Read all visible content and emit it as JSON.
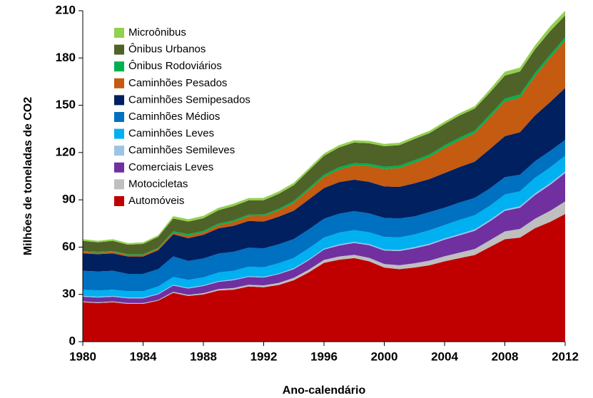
{
  "chart_data": {
    "type": "stacked_area",
    "xlabel": "Ano-calendário",
    "ylabel": "Milhões de toneladas de CO2",
    "x": [
      1980,
      1981,
      1982,
      1983,
      1984,
      1985,
      1986,
      1987,
      1988,
      1989,
      1990,
      1991,
      1992,
      1993,
      1994,
      1995,
      1996,
      1997,
      1998,
      1999,
      2000,
      2001,
      2002,
      2003,
      2004,
      2005,
      2006,
      2007,
      2008,
      2009,
      2010,
      2011,
      2012
    ],
    "xlim": [
      1980,
      2012
    ],
    "xticks": [
      1980,
      1984,
      1988,
      1992,
      1996,
      2000,
      2004,
      2008,
      2012
    ],
    "ylim": [
      0,
      210
    ],
    "yticks": [
      0,
      30,
      60,
      90,
      120,
      150,
      180,
      210
    ],
    "legend": "upper left",
    "series": [
      {
        "name": "Automóveis",
        "color": "#c00000",
        "values": [
          25,
          24.5,
          25,
          24,
          24,
          26,
          31,
          29,
          30,
          32.5,
          33,
          35,
          34.5,
          36,
          39,
          44,
          50,
          52,
          53,
          51,
          47,
          46,
          47,
          48.5,
          51,
          53,
          55,
          60,
          65,
          66,
          72,
          76,
          81
        ]
      },
      {
        "name": "Motocicletas",
        "color": "#bfbfbf",
        "values": [
          0.5,
          0.5,
          0.5,
          0.5,
          0.5,
          0.5,
          0.6,
          0.7,
          0.8,
          0.9,
          1,
          1.1,
          1.2,
          1.3,
          1.5,
          1.7,
          1.9,
          2,
          2.1,
          2.2,
          2.3,
          2.5,
          2.7,
          2.9,
          3.2,
          3.5,
          3.8,
          4.3,
          5,
          5.5,
          6,
          7,
          8
        ]
      },
      {
        "name": "Comerciais Leves",
        "color": "#7030a0",
        "values": [
          3,
          3,
          3,
          3,
          3,
          3.5,
          4,
          4,
          4.5,
          4.5,
          5,
          5,
          5,
          5.5,
          5.5,
          6,
          6.5,
          7,
          7.5,
          8,
          8.5,
          9,
          9.5,
          10,
          10.5,
          11,
          11.5,
          12,
          13,
          13.5,
          15,
          16.5,
          18
        ]
      },
      {
        "name": "Caminhões Semileves",
        "color": "#9dc3e6",
        "values": [
          0.5,
          0.5,
          0.5,
          0.5,
          0.5,
          0.5,
          0.5,
          0.5,
          0.5,
          0.5,
          0.5,
          0.5,
          0.5,
          0.5,
          0.6,
          0.6,
          0.6,
          0.7,
          0.7,
          0.7,
          0.7,
          0.7,
          0.8,
          0.8,
          0.8,
          0.8,
          0.9,
          0.9,
          0.9,
          0.9,
          1,
          1,
          1
        ]
      },
      {
        "name": "Caminhões Leves",
        "color": "#00b0f0",
        "values": [
          4,
          4,
          4,
          4,
          4,
          4.5,
          5,
          5,
          5,
          5.5,
          5.5,
          6,
          6,
          6.5,
          6.5,
          7,
          7,
          7.5,
          7.5,
          7.5,
          8,
          8,
          8,
          8.5,
          8.5,
          9,
          9,
          9,
          9.5,
          9.5,
          10,
          10,
          10
        ]
      },
      {
        "name": "Caminhões Médios",
        "color": "#0070c0",
        "values": [
          12,
          12,
          12,
          11,
          11,
          11,
          13,
          12,
          12,
          12,
          12,
          12,
          12,
          12,
          12,
          12,
          12,
          12,
          12,
          12,
          12,
          12,
          11.5,
          11.5,
          11,
          11,
          11,
          11,
          11,
          10.5,
          10.5,
          10.5,
          10
        ]
      },
      {
        "name": "Caminhões Semipesados",
        "color": "#002060",
        "values": [
          11,
          11,
          11,
          11,
          11,
          12,
          14,
          14.5,
          15,
          16,
          16.5,
          17,
          17,
          17.5,
          18,
          19,
          19.5,
          20,
          20,
          20,
          20,
          20,
          21,
          21,
          22,
          22.5,
          23,
          25,
          26,
          27,
          29,
          31,
          33
        ]
      },
      {
        "name": "Caminhões Pesados",
        "color": "#c55a11",
        "values": [
          1,
          1,
          1,
          1,
          1,
          1,
          1,
          1.5,
          1.5,
          2,
          2.5,
          3,
          3.5,
          4,
          5,
          6,
          7,
          8,
          9,
          10,
          11,
          12,
          13,
          14,
          16,
          17,
          18,
          20,
          22,
          22,
          25,
          28,
          30
        ]
      },
      {
        "name": "Ônibus Rodoviários",
        "color": "#00b050",
        "values": [
          0.5,
          0.5,
          0.5,
          0.5,
          0.5,
          0.5,
          1,
          1,
          1,
          1,
          1,
          1,
          1,
          1,
          1.2,
          1.3,
          1.4,
          1.5,
          1.5,
          1.5,
          1.5,
          1.5,
          1.6,
          1.6,
          1.6,
          1.7,
          1.7,
          1.8,
          1.9,
          2,
          2,
          2,
          2
        ]
      },
      {
        "name": "Ônibus Urbanos",
        "color": "#4f6228",
        "values": [
          6.5,
          6,
          6.5,
          6,
          6.5,
          7,
          8,
          8,
          8,
          8.5,
          9,
          9,
          9,
          9.5,
          10,
          11,
          12,
          12.5,
          13,
          13,
          13,
          13,
          13.5,
          13.5,
          13.5,
          14,
          14,
          14,
          14.5,
          14.5,
          15,
          15,
          14
        ]
      },
      {
        "name": "Microônibus",
        "color": "#92d050",
        "values": [
          1,
          1,
          1,
          1,
          1,
          1,
          1.5,
          1.5,
          1.5,
          1.5,
          1.5,
          1.5,
          1.5,
          1.5,
          1.5,
          1.5,
          1.5,
          1.5,
          1.5,
          1.5,
          1.5,
          1.5,
          1.5,
          1.5,
          1.5,
          1.5,
          1.5,
          2,
          2.5,
          2.5,
          2.5,
          3,
          3
        ]
      }
    ]
  }
}
